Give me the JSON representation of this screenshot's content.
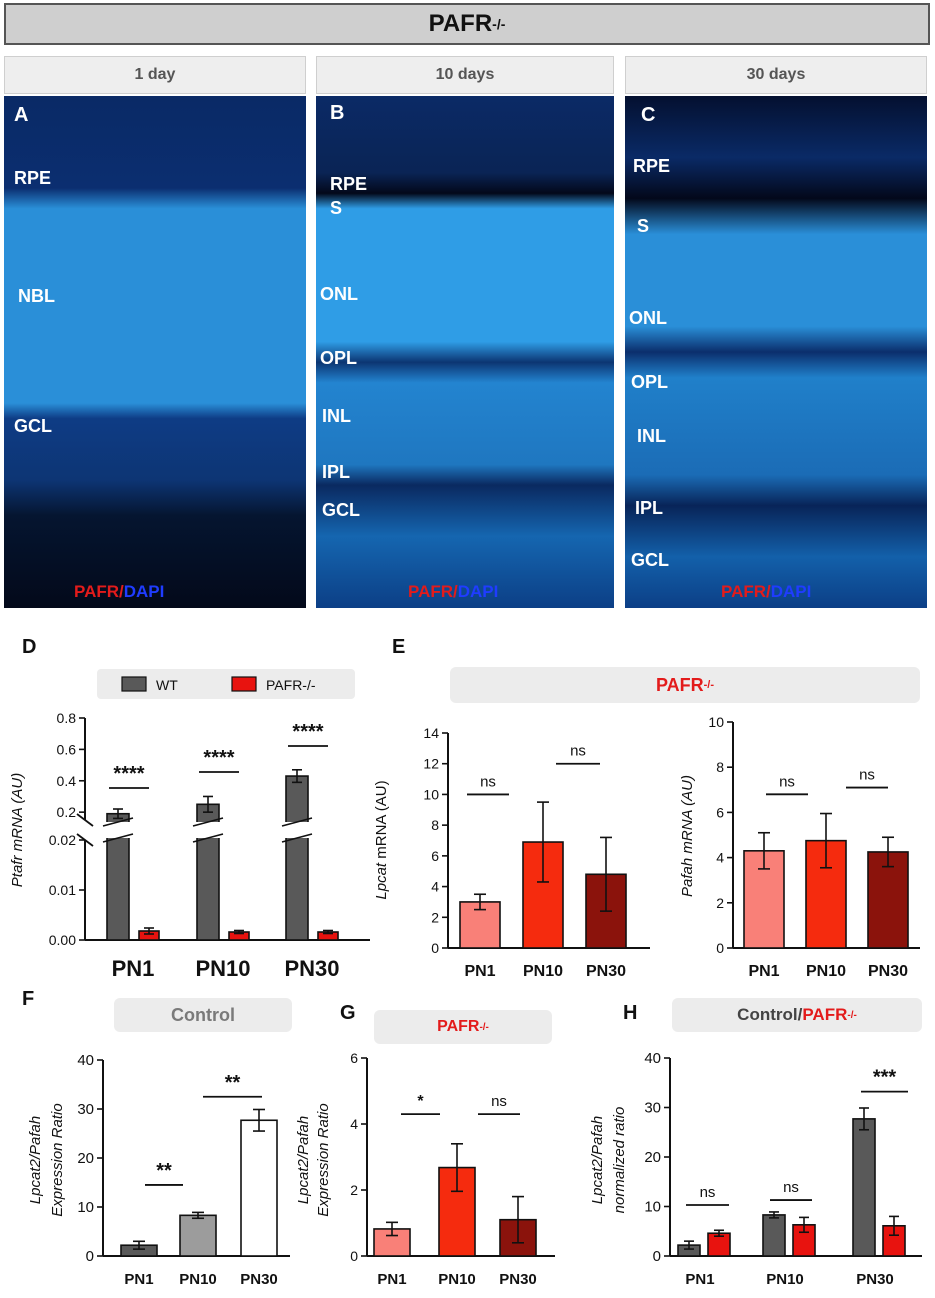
{
  "header": {
    "title": "PAFR",
    "superscript": "-/-"
  },
  "micrographs": [
    {
      "letter": "A",
      "time": "1 day",
      "layers": [
        "RPE",
        "NBL",
        "GCL"
      ],
      "stain_red": "PAFR",
      "stain_sep": "/",
      "stain_blue": "DAPI"
    },
    {
      "letter": "B",
      "time": "10 days",
      "layers": [
        "RPE",
        "S",
        "ONL",
        "OPL",
        "INL",
        "IPL",
        "GCL"
      ],
      "stain_red": "PAFR",
      "stain_sep": "/",
      "stain_blue": "DAPI"
    },
    {
      "letter": "C",
      "time": "30 days",
      "layers": [
        "RPE",
        "S",
        "ONL",
        "OPL",
        "INL",
        "IPL",
        "GCL"
      ],
      "stain_red": "PAFR",
      "stain_sep": "/",
      "stain_blue": "DAPI"
    }
  ],
  "panel_letters": {
    "D": "D",
    "E": "E",
    "F": "F",
    "G": "G",
    "H": "H"
  },
  "badges": {
    "E": {
      "text": "PAFR",
      "sup": "-/-"
    },
    "F": {
      "text": "Control"
    },
    "G": {
      "text": "PAFR",
      "sup": "-/-"
    },
    "H": {
      "text_a": "Control",
      "sep": "/",
      "text_b": "PAFR",
      "sup": "-/-"
    }
  },
  "colors": {
    "wt": "#595959",
    "ko": "#e8130f",
    "pn1": "#f98078",
    "pn10": "#f52b0e",
    "pn30": "#8b130c",
    "ctrl_pn10": "#9c9c9c",
    "ctrl_pn30": "#ffffff"
  },
  "chart_data": [
    {
      "panel": "D",
      "type": "bar",
      "categories": [
        "PN1",
        "PN10",
        "PN30"
      ],
      "legend": [
        "WT",
        "PAFR-/-"
      ],
      "series": [
        {
          "name": "WT",
          "values": [
            0.19,
            0.25,
            0.43
          ],
          "errors": [
            0.03,
            0.05,
            0.04
          ]
        },
        {
          "name": "PAFR-/-",
          "values": [
            0.0018,
            0.0016,
            0.0016
          ],
          "errors": [
            0.0006,
            0.0003,
            0.0003
          ]
        }
      ],
      "ylabel": "Ptafr mRNA (AU)",
      "axis_break": true,
      "upper_ticks": [
        "0.2",
        "0.4",
        "0.6",
        "0.8"
      ],
      "lower_ticks": [
        "0.00",
        "0.01",
        "0.02"
      ],
      "sig": [
        "****",
        "****",
        "****"
      ]
    },
    {
      "panel": "E1",
      "type": "bar",
      "categories": [
        "PN1",
        "PN10",
        "PN30"
      ],
      "values": [
        3.0,
        6.9,
        4.8
      ],
      "errors": [
        0.5,
        2.6,
        2.4
      ],
      "ylabel_italic": "Lpcat",
      "ylabel_rest": " mRNA (AU)",
      "ylim": [
        0,
        14
      ],
      "yticks": [
        0,
        2,
        4,
        6,
        8,
        10,
        12,
        14
      ],
      "sig": [
        "ns",
        "ns"
      ]
    },
    {
      "panel": "E2",
      "type": "bar",
      "categories": [
        "PN1",
        "PN10",
        "PN30"
      ],
      "values": [
        4.3,
        4.75,
        4.25
      ],
      "errors": [
        0.8,
        1.2,
        0.65
      ],
      "ylabel": "Pafah mRNA (AU)",
      "ylim": [
        0,
        10
      ],
      "yticks": [
        0,
        2,
        4,
        6,
        8,
        10
      ],
      "sig": [
        "ns",
        "ns"
      ]
    },
    {
      "panel": "F",
      "type": "bar",
      "categories": [
        "PN1",
        "PN10",
        "PN30"
      ],
      "values": [
        2.2,
        8.3,
        27.7
      ],
      "errors": [
        0.8,
        0.6,
        2.2
      ],
      "ylabel_line1": "Lpcat2/Pafah",
      "ylabel_line2": "Expression Ratio",
      "ylim": [
        0,
        40
      ],
      "yticks": [
        0,
        10,
        20,
        30,
        40
      ],
      "sig": [
        "**",
        "**"
      ]
    },
    {
      "panel": "G",
      "type": "bar",
      "categories": [
        "PN1",
        "PN10",
        "PN30"
      ],
      "values": [
        0.82,
        2.68,
        1.1
      ],
      "errors": [
        0.2,
        0.72,
        0.7
      ],
      "ylabel_line1": "Lpcat2/Pafah",
      "ylabel_line2": "Expression Ratio",
      "ylim": [
        0,
        6
      ],
      "yticks": [
        0,
        2,
        4,
        6
      ],
      "sig": [
        "*",
        "ns"
      ]
    },
    {
      "panel": "H",
      "type": "bar",
      "categories": [
        "PN1",
        "PN10",
        "PN30"
      ],
      "series": [
        {
          "name": "Control",
          "values": [
            2.2,
            8.3,
            27.7
          ],
          "errors": [
            0.8,
            0.6,
            2.2
          ]
        },
        {
          "name": "PAFR-/-",
          "values": [
            4.6,
            6.3,
            6.1
          ],
          "errors": [
            0.6,
            1.5,
            1.9
          ]
        }
      ],
      "ylabel_line1": "Lpcat2/Pafah",
      "ylabel_line2": "normalized ratio",
      "ylim": [
        0,
        40
      ],
      "yticks": [
        0,
        10,
        20,
        30,
        40
      ],
      "sig": [
        "ns",
        "ns",
        "***"
      ]
    }
  ]
}
